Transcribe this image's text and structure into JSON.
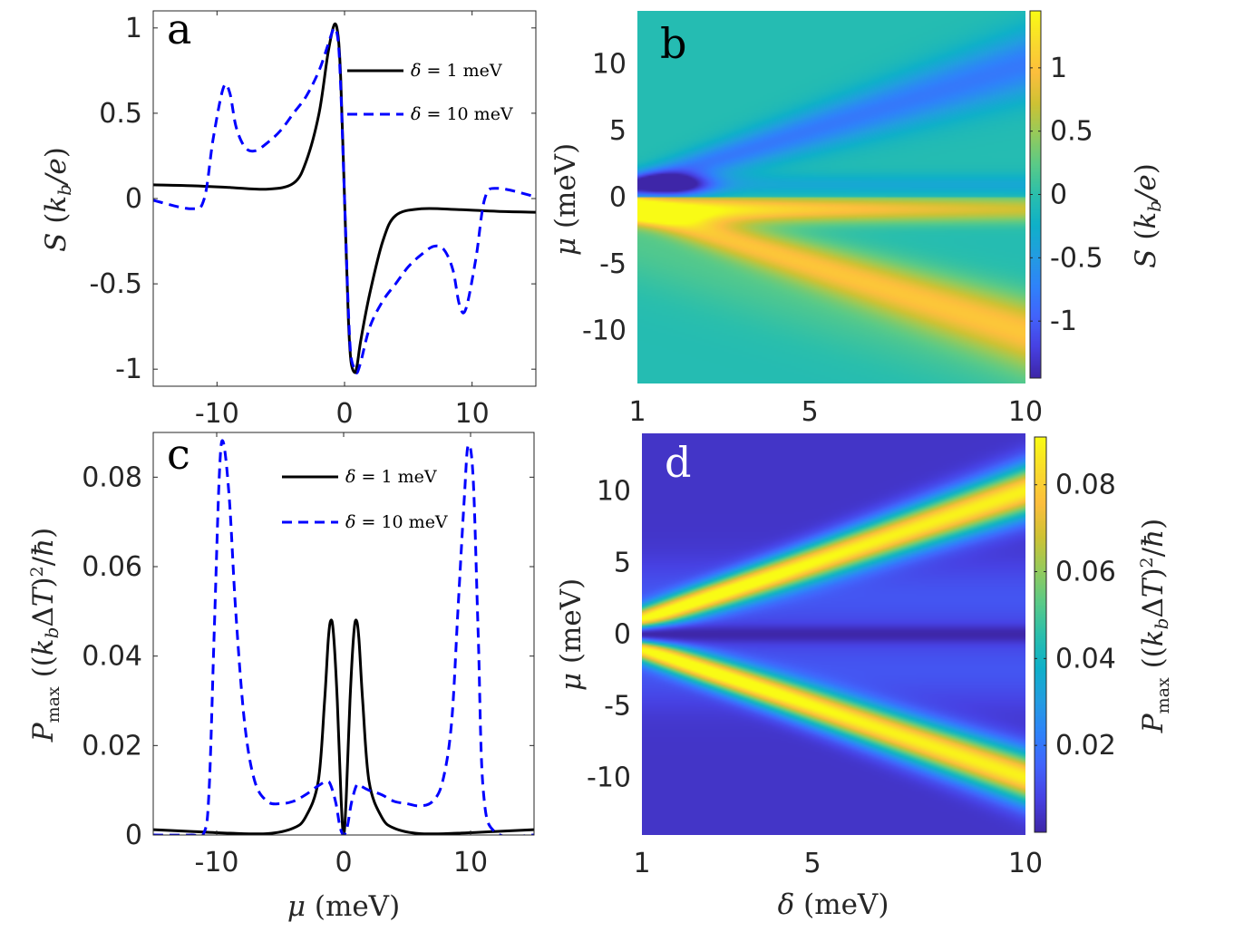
{
  "panel_labels": {
    "a": "a",
    "b": "b",
    "c": "c",
    "d": "d"
  },
  "colors": {
    "solid_series": "#000000",
    "dashed_series": "#0000ff",
    "colormap": "parula"
  },
  "chart_data": [
    {
      "panel": "a",
      "type": "line",
      "ylabel_var": "S",
      "ylabel_unit": "(k_b/e)",
      "xlim": [
        -15,
        15
      ],
      "ylim": [
        -1.1,
        1.1
      ],
      "xticks": [
        -10,
        0,
        10
      ],
      "xtick_labels": [
        "-10",
        "0",
        "10"
      ],
      "yticks": [
        1,
        0.5,
        0,
        -0.5,
        -1
      ],
      "ytick_labels": [
        "1",
        "0.5",
        "0",
        "-0.5",
        "-1"
      ],
      "legend_position": "top-right",
      "series": [
        {
          "name": "δ = 1 meV",
          "var": "δ",
          "value_text": "= 1 meV",
          "style": "solid",
          "x": [
            -15,
            -12,
            -9,
            -6,
            -4,
            -3,
            -2,
            -1.3,
            -0.8,
            -0.5,
            -0.3,
            0,
            0.3,
            0.5,
            0.8,
            1.0,
            1.3,
            2,
            3,
            4,
            6,
            9,
            12,
            15
          ],
          "y": [
            0.08,
            0.075,
            0.065,
            0.055,
            0.09,
            0.22,
            0.5,
            0.85,
            1.02,
            0.95,
            0.7,
            0,
            -0.7,
            -0.95,
            -1.02,
            -0.97,
            -0.82,
            -0.55,
            -0.25,
            -0.1,
            -0.06,
            -0.065,
            -0.075,
            -0.08
          ]
        },
        {
          "name": "δ = 10 meV",
          "var": "δ",
          "value_text": "= 10 meV",
          "style": "dashed",
          "x": [
            -15,
            -12,
            -11,
            -10.3,
            -9.5,
            -9,
            -8.5,
            -7.8,
            -7,
            -6,
            -5,
            -4,
            -3,
            -2,
            -1.3,
            -0.8,
            -0.5,
            -0.3,
            0,
            0.3,
            0.5,
            0.8,
            1.0,
            1.3,
            2,
            3,
            4,
            5,
            6,
            7,
            7.8,
            8.5,
            9,
            9.5,
            10.3,
            11,
            12,
            15
          ],
          "y": [
            -0.01,
            -0.06,
            0.0,
            0.35,
            0.65,
            0.62,
            0.42,
            0.3,
            0.28,
            0.33,
            0.4,
            0.5,
            0.6,
            0.75,
            0.9,
            1.0,
            0.92,
            0.65,
            0,
            -0.65,
            -0.92,
            -1.0,
            -1.02,
            -0.95,
            -0.75,
            -0.6,
            -0.5,
            -0.4,
            -0.33,
            -0.28,
            -0.3,
            -0.42,
            -0.62,
            -0.65,
            -0.35,
            0.0,
            0.06,
            0.01
          ]
        }
      ]
    },
    {
      "panel": "b",
      "type": "heatmap",
      "xlabel_var": "δ",
      "xlabel_unit": "(meV)",
      "ylabel_var": "μ",
      "ylabel_unit": "(meV)",
      "xlim": [
        1,
        10
      ],
      "ylim": [
        -14,
        14
      ],
      "xticks": [
        1,
        5,
        10
      ],
      "xtick_labels": [
        "1",
        "5",
        "10"
      ],
      "yticks": [
        10,
        5,
        0,
        -5,
        -10
      ],
      "ytick_labels": [
        "10",
        "5",
        "0",
        "-5",
        "-10"
      ],
      "clim": [
        -1.45,
        1.45
      ],
      "colorbar_ticks": [
        1,
        0.5,
        0,
        -0.5,
        -1
      ],
      "colorbar_tick_labels": [
        "1",
        "0.5",
        "0",
        "-0.5",
        "-1"
      ],
      "colorbar_label_var": "S",
      "colorbar_label_unit": "(k_b/e)",
      "description_of_field": [
        {
          "feature": "center band below μ=0",
          "value": 1.3
        },
        {
          "feature": "center band above μ=0",
          "value": -1.2
        },
        {
          "feature": "upper arm along μ≈δ",
          "value": -0.7
        },
        {
          "feature": "lower arm along μ≈-δ",
          "value": 0.8
        },
        {
          "feature": "background",
          "value": -0.05
        }
      ]
    },
    {
      "panel": "c",
      "type": "line",
      "xlabel_var": "μ",
      "xlabel_unit": "(meV)",
      "ylabel_var": "P_max",
      "ylabel_unit": "((k_bΔT)²/ħ)",
      "xlim": [
        -15,
        15
      ],
      "ylim": [
        0,
        0.09
      ],
      "xticks": [
        -10,
        0,
        10
      ],
      "xtick_labels": [
        "-10",
        "0",
        "10"
      ],
      "yticks": [
        0.08,
        0.06,
        0.04,
        0.02,
        0
      ],
      "ytick_labels": [
        "0.08",
        "0.06",
        "0.04",
        "0.02",
        "0"
      ],
      "legend_position": "top-right",
      "series": [
        {
          "name": "δ = 1 meV",
          "var": "δ",
          "value_text": "= 1 meV",
          "style": "solid",
          "x": [
            -15,
            -12,
            -9,
            -6,
            -4,
            -3,
            -2,
            -1.5,
            -1.2,
            -1.0,
            -0.8,
            -0.5,
            -0.2,
            0,
            0.2,
            0.5,
            0.8,
            1.0,
            1.2,
            1.5,
            2,
            3,
            4,
            6,
            9,
            12,
            15
          ],
          "y": [
            0.0012,
            0.0008,
            0.0004,
            0.0003,
            0.0015,
            0.004,
            0.012,
            0.03,
            0.044,
            0.048,
            0.045,
            0.03,
            0.008,
            0,
            0.008,
            0.03,
            0.045,
            0.048,
            0.044,
            0.03,
            0.012,
            0.004,
            0.0015,
            0.0003,
            0.0004,
            0.0008,
            0.0012
          ]
        },
        {
          "name": "δ = 10 meV",
          "var": "δ",
          "value_text": "= 10 meV",
          "style": "dashed",
          "x": [
            -15,
            -12,
            -11,
            -10.6,
            -10.2,
            -9.8,
            -9.5,
            -9.0,
            -8.5,
            -7.8,
            -7,
            -6,
            -5,
            -4,
            -3,
            -2,
            -1.3,
            -1,
            -0.6,
            -0.3,
            0,
            0.3,
            0.6,
            1,
            1.3,
            2,
            3,
            4,
            5,
            6,
            7,
            7.8,
            8.5,
            9.0,
            9.5,
            9.8,
            10.2,
            10.6,
            11,
            12,
            15
          ],
          "y": [
            0.0,
            0.0,
            0.0005,
            0.01,
            0.045,
            0.08,
            0.088,
            0.075,
            0.05,
            0.025,
            0.012,
            0.0075,
            0.007,
            0.0075,
            0.009,
            0.011,
            0.012,
            0.011,
            0.007,
            0.002,
            0,
            0.002,
            0.007,
            0.011,
            0.011,
            0.01,
            0.009,
            0.0075,
            0.007,
            0.0065,
            0.0075,
            0.012,
            0.025,
            0.05,
            0.075,
            0.087,
            0.08,
            0.045,
            0.01,
            0.0005,
            0.0
          ]
        }
      ]
    },
    {
      "panel": "d",
      "type": "heatmap",
      "xlabel_var": "δ",
      "xlabel_unit": "(meV)",
      "ylabel_var": "μ",
      "ylabel_unit": "(meV)",
      "xlim": [
        1,
        10
      ],
      "ylim": [
        -14,
        14
      ],
      "xticks": [
        1,
        5,
        10
      ],
      "xtick_labels": [
        "1",
        "5",
        "10"
      ],
      "yticks": [
        10,
        5,
        0,
        -5,
        -10
      ],
      "ytick_labels": [
        "10",
        "5",
        "0",
        "-5",
        "-10"
      ],
      "clim": [
        0,
        0.091
      ],
      "colorbar_ticks": [
        0.08,
        0.06,
        0.04,
        0.02
      ],
      "colorbar_tick_labels": [
        "0.08",
        "0.06",
        "0.04",
        "0.02"
      ],
      "colorbar_label_var": "P_max",
      "colorbar_label_unit": "((k_bΔT)²/ħ)",
      "description_of_field": [
        {
          "feature": "upper arm along μ≈δ",
          "value": 0.085
        },
        {
          "feature": "lower arm along μ≈-δ",
          "value": 0.085
        },
        {
          "feature": "center line μ=0",
          "value": 0.0
        },
        {
          "feature": "background",
          "value": 0.004
        }
      ]
    }
  ]
}
